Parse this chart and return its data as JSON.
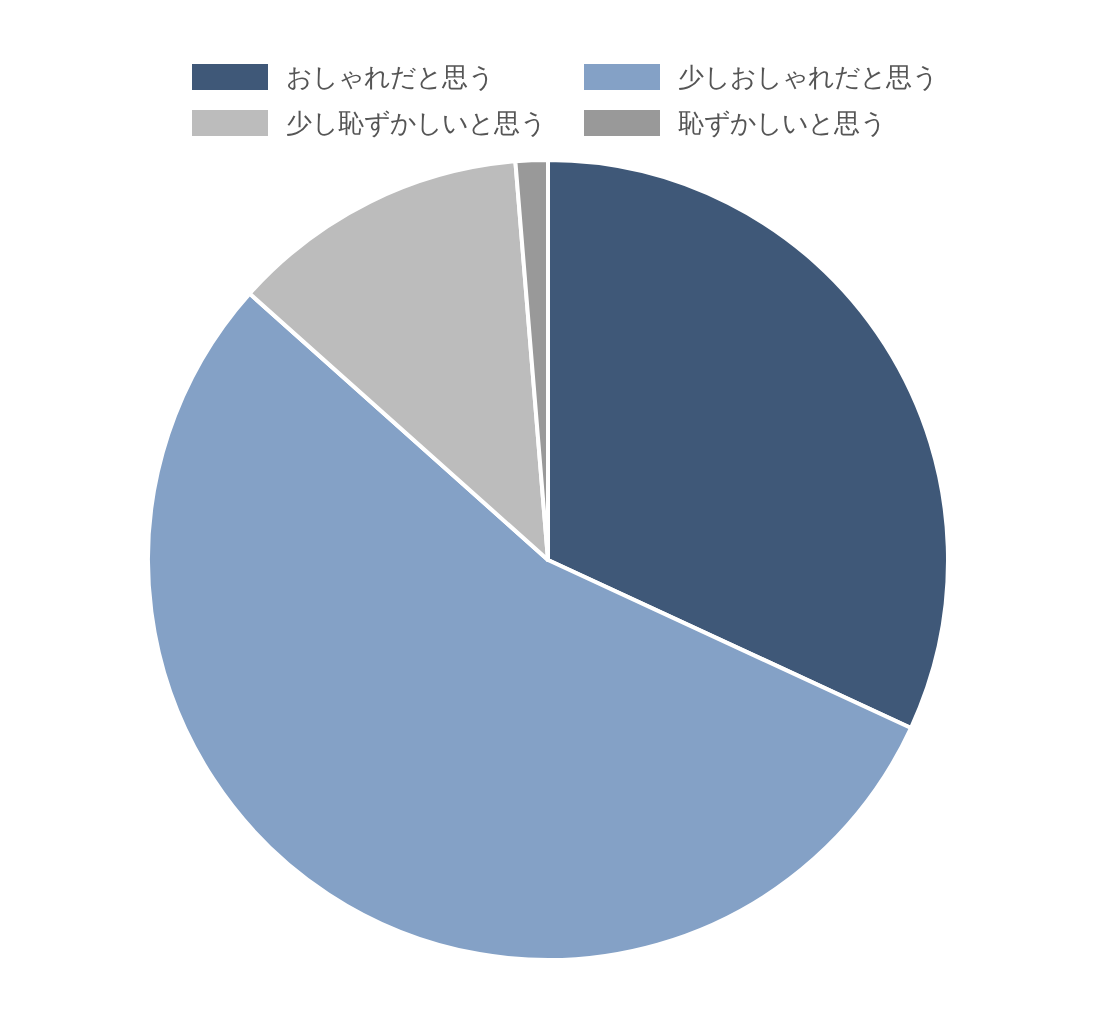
{
  "chart_data": {
    "type": "pie",
    "legend": "top",
    "categories": [
      "おしゃれだと思う",
      "少しおしゃれだと思う",
      "少し恥ずかしいと思う",
      "恥ずかしいと思う"
    ],
    "values": [
      31.9,
      54.7,
      12.1,
      1.3
    ],
    "colors": [
      "#3f5878",
      "#84a1c6",
      "#bcbcbc",
      "#999999"
    ]
  }
}
